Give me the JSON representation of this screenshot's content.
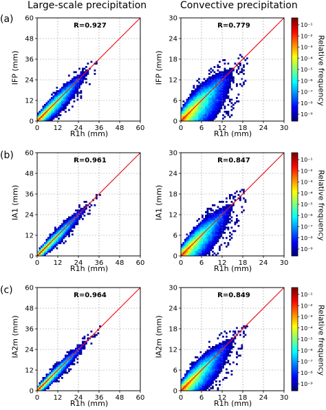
{
  "titles": {
    "left": "Large-scale precipitation",
    "right": "Convective precipitation"
  },
  "panel_labels": [
    "(a)",
    "(b)",
    "(c)"
  ],
  "colorbar": {
    "label": "Relative frequency",
    "ticks": [
      "10⁻¹",
      "10⁻²",
      "10⁻³",
      "10⁻⁴",
      "10⁻⁵",
      "10⁻⁶",
      "10⁻⁷",
      "10⁻⁸",
      "10⁻⁹"
    ]
  },
  "colors": {
    "diagonal": "#e8141c",
    "grid": "#9a9a9a"
  },
  "chart_data": [
    {
      "type": "heatmap",
      "row": 0,
      "col": 0,
      "xlabel": "R1h (mm)",
      "ylabel": "IFP (mm)",
      "r_label": "R=0.927",
      "xlim": [
        0,
        60
      ],
      "ylim": [
        0,
        60
      ],
      "xticks": [
        0,
        12,
        24,
        36,
        48,
        60
      ],
      "yticks": [
        0,
        12,
        24,
        36,
        48,
        60
      ],
      "spread": 0.34,
      "xmax": 36,
      "grid": true
    },
    {
      "type": "heatmap",
      "row": 0,
      "col": 1,
      "xlabel": "R1h (mm)",
      "ylabel": "IFP (mm)",
      "r_label": "R=0.779",
      "xlim": [
        0,
        30
      ],
      "ylim": [
        0,
        30
      ],
      "xticks": [
        0,
        6,
        12,
        18,
        24,
        30
      ],
      "yticks": [
        0,
        6,
        12,
        18,
        24,
        30
      ],
      "spread": 0.7,
      "xmax": 22,
      "grid": true
    },
    {
      "type": "heatmap",
      "row": 1,
      "col": 0,
      "xlabel": "R1h (mm)",
      "ylabel": "IA1 (mm)",
      "r_label": "R=0.961",
      "xlim": [
        0,
        60
      ],
      "ylim": [
        0,
        60
      ],
      "xticks": [
        0,
        12,
        24,
        36,
        48,
        60
      ],
      "yticks": [
        0,
        12,
        24,
        36,
        48,
        60
      ],
      "spread": 0.24,
      "xmax": 37,
      "grid": true
    },
    {
      "type": "heatmap",
      "row": 1,
      "col": 1,
      "xlabel": "R1h (mm)",
      "ylabel": "IA1 (mm)",
      "r_label": "R=0.847",
      "xlim": [
        0,
        30
      ],
      "ylim": [
        0,
        30
      ],
      "xticks": [
        0,
        6,
        12,
        18,
        24,
        30
      ],
      "yticks": [
        0,
        6,
        12,
        18,
        24,
        30
      ],
      "spread": 0.55,
      "xmax": 22,
      "grid": true
    },
    {
      "type": "heatmap",
      "row": 2,
      "col": 0,
      "xlabel": "R1h (mm)",
      "ylabel": "IA2m (mm)",
      "r_label": "R=0.964",
      "xlim": [
        0,
        60
      ],
      "ylim": [
        0,
        60
      ],
      "xticks": [
        0,
        12,
        24,
        36,
        48,
        60
      ],
      "yticks": [
        0,
        12,
        24,
        36,
        48,
        60
      ],
      "spread": 0.22,
      "xmax": 37,
      "grid": true
    },
    {
      "type": "heatmap",
      "row": 2,
      "col": 1,
      "xlabel": "R1h (mm)",
      "ylabel": "IA2m (mm)",
      "r_label": "R=0.849",
      "xlim": [
        0,
        30
      ],
      "ylim": [
        0,
        30
      ],
      "xticks": [
        0,
        6,
        12,
        18,
        24,
        30
      ],
      "yticks": [
        0,
        6,
        12,
        18,
        24,
        30
      ],
      "spread": 0.55,
      "xmax": 22,
      "grid": true
    }
  ]
}
